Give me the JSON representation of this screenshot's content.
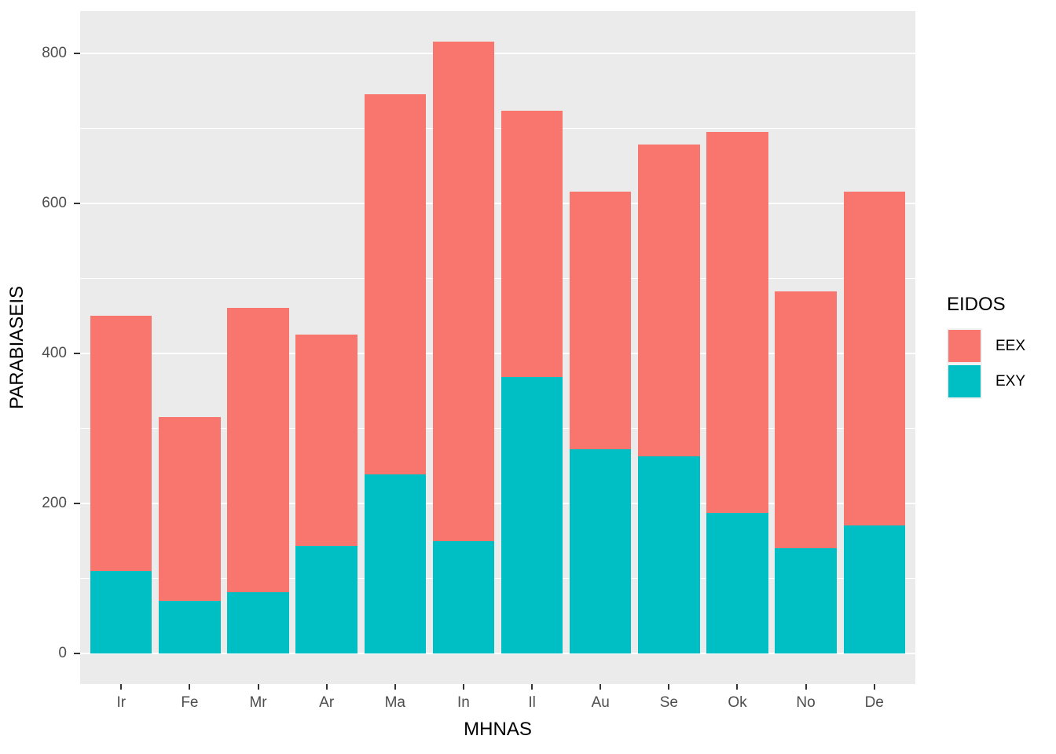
{
  "chart_data": {
    "type": "bar",
    "stacked": true,
    "title": "",
    "xlabel": "MHNAS",
    "ylabel": "PARABIASEIS",
    "legend_title": "EIDOS",
    "legend_position": "right",
    "categories": [
      "Ir",
      "Fe",
      "Mr",
      "Ar",
      "Ma",
      "In",
      "Il",
      "Au",
      "Se",
      "Ok",
      "No",
      "De"
    ],
    "series": [
      {
        "name": "EEX",
        "color": "#F8766D",
        "values": [
          340,
          245,
          378,
          282,
          507,
          665,
          355,
          343,
          415,
          508,
          342,
          445
        ]
      },
      {
        "name": "EXY",
        "color": "#00BFC4",
        "values": [
          110,
          70,
          82,
          143,
          238,
          150,
          368,
          272,
          263,
          187,
          140,
          170
        ]
      }
    ],
    "stack_totals": [
      450,
      315,
      460,
      425,
      745,
      815,
      723,
      615,
      678,
      695,
      482,
      615
    ],
    "y_ticks": [
      0,
      200,
      400,
      600,
      800
    ],
    "y_minor_ticks": [
      100,
      300,
      500,
      700
    ],
    "ylim": [
      0,
      856
    ],
    "ylim_display": [
      -41,
      856
    ],
    "grid": true,
    "bar_width_fraction": 0.9,
    "colors": {
      "panel_bg": "#EBEBEB",
      "grid": "#FFFFFF",
      "axis_text": "#4D4D4D",
      "axis_title": "#000000",
      "tick_mark": "#333333",
      "legend_key_bg": "#F2F2F2"
    }
  }
}
